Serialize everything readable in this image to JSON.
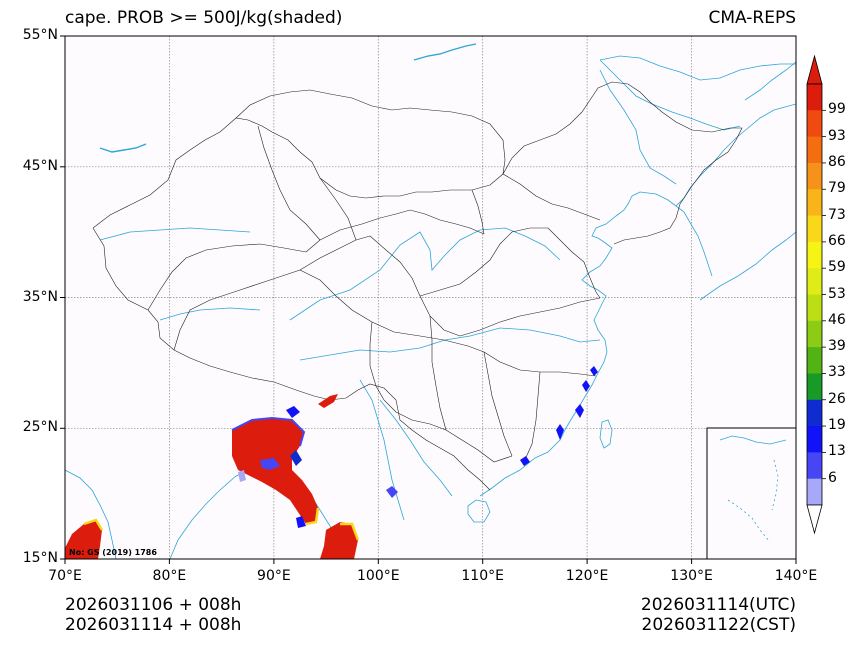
{
  "map": {
    "title": "cape. PROB >= 500J/kg(shaded)",
    "model": "CMA-REPS",
    "approval_no": "No: GS (2019) 1786",
    "lat_labels": [
      "55°N",
      "45°N",
      "35°N",
      "25°N",
      "15°N"
    ],
    "lon_labels": [
      "70°E",
      "80°E",
      "90°E",
      "100°E",
      "110°E",
      "120°E",
      "130°E",
      "140°E"
    ],
    "footer": {
      "init_utc": "2026031106  +  008h",
      "init_cst": "2026031114  +  008h",
      "valid_utc": "2026031114(UTC)",
      "valid_cst": "2026031122(CST)"
    }
  },
  "colorbar": {
    "levels": [
      "99",
      "93",
      "86",
      "79",
      "73",
      "66",
      "59",
      "53",
      "46",
      "39",
      "33",
      "26",
      "19",
      "13",
      "6"
    ],
    "colors": [
      "#dc1c0c",
      "#f04a10",
      "#f36e10",
      "#f6921a",
      "#f8b418",
      "#f8d818",
      "#f6f414",
      "#e0ec18",
      "#bcde14",
      "#8ccc14",
      "#52b414",
      "#189a26",
      "#0e2cd0",
      "#1212f8",
      "#4646f4",
      "#a8a8f8"
    ],
    "over_color": "#dc1c0c",
    "under_color": "#ffffff"
  },
  "styles": {
    "river_color": "#2fa6d8",
    "border_color": "#222222",
    "grid_color": "#888888",
    "ocean_bg": "#fdfbfd"
  }
}
